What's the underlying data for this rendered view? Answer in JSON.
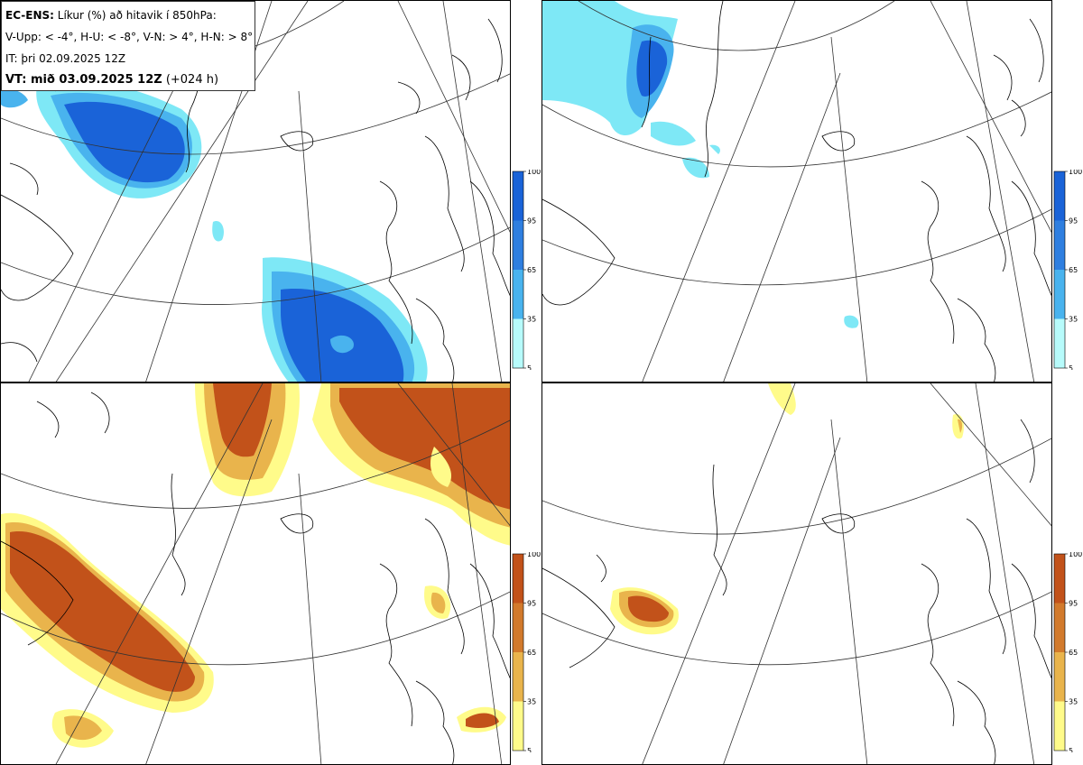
{
  "header": {
    "model": "EC-ENS:",
    "description": " Líkur (%) að hitavik í 850hPa:",
    "thresholds": "V-Upp: < -4°, H-U: < -8°, V-N: > 4°, H-N: > 8°",
    "initial_time": "IT: þri 02.09.2025 12Z",
    "valid_label": "VT: mið 03.09.2025 12Z",
    "lead": " (+024 h)"
  },
  "panels": [
    {
      "id": "V-Upp",
      "palette": "blue"
    },
    {
      "id": "H-U",
      "palette": "blue"
    },
    {
      "id": "V-N",
      "palette": "orange"
    },
    {
      "id": "H-N",
      "palette": "orange"
    }
  ],
  "colorbar": {
    "ticks": [
      "100",
      "95",
      "65",
      "35",
      "5"
    ],
    "blue": [
      "#1a63d8",
      "#2f7fe0",
      "#49b3ee",
      "#7ee8f6",
      "#b7fbfb"
    ],
    "orange": [
      "#c2521a",
      "#d27a2c",
      "#e9b44c",
      "#f5e56a",
      "#fffb8a"
    ]
  }
}
